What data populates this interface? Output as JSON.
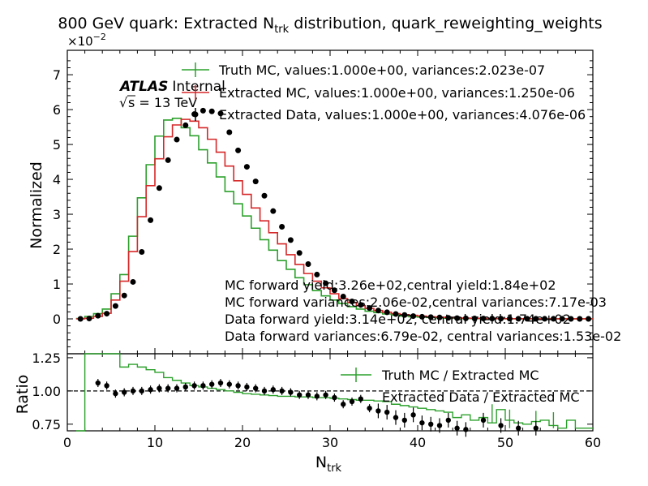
{
  "chart_data": {
    "type": "histogram-with-ratio",
    "title": "800 GeV quark: Extracted N",
    "title_sub": "trk",
    "title_tail": " distribution, quark_reweighting_weights",
    "experiment": "ATLAS",
    "experiment_status": "Internal",
    "energy_label": "s = 13 TeV",
    "y_exponent_base": "×10",
    "y_exponent_power": "−2",
    "xlabel": "N",
    "xlabel_sub": "trk",
    "ylabel_top": "Normalized",
    "ylabel_bottom": "Ratio",
    "x_range": [
      0,
      60
    ],
    "y_range_top": [
      -0.01,
      0.077
    ],
    "y_range_ratio": [
      0.7,
      1.28
    ],
    "x_ticks": [
      "0",
      "10",
      "20",
      "30",
      "40",
      "50",
      "60"
    ],
    "y_ticks_top": [
      "0",
      "1",
      "2",
      "3",
      "4",
      "5",
      "6",
      "7"
    ],
    "y_ticks_top_values": [
      0,
      0.01,
      0.02,
      0.03,
      0.04,
      0.05,
      0.06,
      0.07
    ],
    "y_ticks_ratio": [
      "0.75",
      "1.00",
      "1.25"
    ],
    "y_ticks_ratio_values": [
      0.75,
      1.0,
      1.25
    ],
    "legend_top": [
      "Truth MC, values:1.000e+00, variances:2.023e-07",
      "Extracted MC, values:1.000e+00, variances:1.250e-06",
      "Extracted Data, values:1.000e+00, variances:4.076e-06"
    ],
    "legend_ratio": [
      "Truth MC / Extracted MC",
      "Extracted Data / Extracted MC"
    ],
    "annotations": [
      "MC forward yield:3.26e+02,central yield:1.84e+02",
      "MC forward variances:2.06e-02,central variances:7.17e-03",
      "Data forward yield:3.14e+02, central yield:1.74e+02",
      "Data forward variances:6.79e-02, central variances:1.53e-02"
    ],
    "colors": {
      "truth_mc": "#2ca02c",
      "extracted_mc": "#d62728",
      "extracted_data": "#000000"
    },
    "bin_edges": [
      1,
      2,
      3,
      4,
      5,
      6,
      7,
      8,
      9,
      10,
      11,
      12,
      13,
      14,
      15,
      16,
      17,
      18,
      19,
      20,
      21,
      22,
      23,
      24,
      25,
      26,
      27,
      28,
      29,
      30,
      31,
      32,
      33,
      34,
      35,
      36,
      37,
      38,
      39,
      40,
      41,
      42,
      43,
      44,
      45,
      46,
      47,
      48,
      49,
      50,
      51,
      52,
      53,
      54,
      55,
      56,
      57,
      58,
      59,
      60
    ],
    "series": [
      {
        "name": "Truth MC",
        "values": [
          0.0001,
          0.0007,
          0.0015,
          0.0028,
          0.0072,
          0.0127,
          0.0237,
          0.0347,
          0.0442,
          0.0524,
          0.057,
          0.0575,
          0.0548,
          0.0525,
          0.0485,
          0.0447,
          0.0407,
          0.0365,
          0.033,
          0.0295,
          0.026,
          0.0227,
          0.0197,
          0.0167,
          0.0142,
          0.0118,
          0.0098,
          0.0081,
          0.0066,
          0.0054,
          0.0044,
          0.0035,
          0.0028,
          0.0022,
          0.0018,
          0.0014,
          0.0011,
          0.0008,
          0.0006,
          0.0005,
          0.0004,
          0.0003,
          0.0002,
          0.00015,
          0.0001,
          8e-05,
          6e-05,
          4e-05,
          3e-05,
          2e-05,
          2e-05,
          1e-05,
          1e-05,
          1e-05,
          1e-05,
          1e-05,
          1e-05,
          1e-05,
          1e-05
        ]
      },
      {
        "name": "Extracted MC",
        "values": [
          0.0,
          0.0002,
          0.0007,
          0.0016,
          0.0054,
          0.0108,
          0.0193,
          0.0293,
          0.0382,
          0.0459,
          0.0522,
          0.0556,
          0.0572,
          0.0567,
          0.0548,
          0.0515,
          0.0478,
          0.0438,
          0.0396,
          0.0357,
          0.0318,
          0.0281,
          0.0247,
          0.0215,
          0.0184,
          0.0156,
          0.013,
          0.0108,
          0.0089,
          0.0072,
          0.0058,
          0.0047,
          0.0038,
          0.003,
          0.0024,
          0.0019,
          0.0015,
          0.0012,
          0.001,
          0.0008,
          0.0006,
          0.0005,
          0.0004,
          0.0003,
          0.00022,
          0.00017,
          0.00013,
          0.0001,
          8e-05,
          6e-05,
          5e-05,
          4e-05,
          3e-05,
          2e-05,
          2e-05,
          1e-05,
          1e-05,
          1e-05,
          1e-05
        ]
      },
      {
        "name": "Extracted Data",
        "x": [
          1.5,
          2.5,
          3.5,
          4.5,
          5.5,
          6.5,
          7.5,
          8.5,
          9.5,
          10.5,
          11.5,
          12.5,
          13.5,
          14.5,
          15.5,
          16.5,
          17.5,
          18.5,
          19.5,
          20.5,
          21.5,
          22.5,
          23.5,
          24.5,
          25.5,
          26.5,
          27.5,
          28.5,
          29.5,
          30.5,
          31.5,
          32.5,
          33.5,
          34.5,
          35.5,
          36.5,
          37.5,
          38.5,
          39.5,
          40.5,
          41.5,
          42.5,
          43.5,
          44.5,
          45.5,
          46.5,
          47.5,
          48.5,
          49.5,
          50.5,
          51.5,
          52.5,
          53.5,
          54.5,
          55.5,
          56.5,
          57.5,
          58.5,
          59.5
        ],
        "values": [
          0.0,
          0.0001,
          0.0009,
          0.0015,
          0.0037,
          0.0067,
          0.0106,
          0.0192,
          0.0283,
          0.0375,
          0.0455,
          0.0514,
          0.0555,
          0.0587,
          0.0597,
          0.0595,
          0.0589,
          0.0535,
          0.0483,
          0.0436,
          0.0394,
          0.0353,
          0.0309,
          0.0264,
          0.0226,
          0.0189,
          0.0157,
          0.0127,
          0.0102,
          0.0082,
          0.0064,
          0.005,
          0.004,
          0.0031,
          0.0024,
          0.0019,
          0.0014,
          0.0011,
          0.0008,
          0.0006,
          0.0005,
          0.0004,
          0.0003,
          0.0002,
          0.00015,
          0.00012,
          0.0001,
          8e-05,
          6e-05,
          5e-05,
          4e-05,
          3e-05,
          3e-05,
          2e-05,
          2e-05,
          2e-05,
          1e-05,
          1e-05,
          1e-05
        ]
      }
    ],
    "ratio_series": [
      {
        "name": "Truth MC / Extracted MC",
        "values": [
          0.5,
          1.3,
          1.3,
          1.3,
          1.3,
          1.18,
          1.2,
          1.18,
          1.16,
          1.14,
          1.1,
          1.08,
          1.06,
          1.04,
          1.03,
          1.02,
          1.01,
          1.0,
          0.99,
          0.98,
          0.975,
          0.97,
          0.965,
          0.96,
          0.96,
          0.955,
          0.955,
          0.95,
          0.95,
          0.945,
          0.94,
          0.935,
          0.93,
          0.93,
          0.925,
          0.92,
          0.9,
          0.89,
          0.88,
          0.87,
          0.86,
          0.85,
          0.84,
          0.8,
          0.82,
          0.78,
          0.8,
          0.76,
          0.86,
          0.78,
          0.76,
          0.75,
          0.77,
          0.78,
          0.74,
          0.72,
          0.78,
          0.72,
          0.72
        ]
      },
      {
        "name": "Extracted Data / Extracted MC",
        "x": [
          3.5,
          4.5,
          5.5,
          6.5,
          7.5,
          8.5,
          9.5,
          10.5,
          11.5,
          12.5,
          13.5,
          14.5,
          15.5,
          16.5,
          17.5,
          18.5,
          19.5,
          20.5,
          21.5,
          22.5,
          23.5,
          24.5,
          25.5,
          26.5,
          27.5,
          28.5,
          29.5,
          30.5,
          31.5,
          32.5,
          33.5,
          34.5,
          35.5,
          36.5,
          37.5,
          38.5,
          39.5,
          40.5,
          41.5,
          42.5,
          43.5,
          44.5,
          45.5,
          47.5,
          49.5,
          51.5,
          53.5
        ],
        "values": [
          1.06,
          1.04,
          0.98,
          0.99,
          1.0,
          1.0,
          1.01,
          1.02,
          1.02,
          1.02,
          1.03,
          1.04,
          1.04,
          1.05,
          1.06,
          1.05,
          1.04,
          1.03,
          1.02,
          1.0,
          1.01,
          1.0,
          0.99,
          0.97,
          0.97,
          0.96,
          0.97,
          0.95,
          0.9,
          0.92,
          0.94,
          0.87,
          0.85,
          0.84,
          0.8,
          0.78,
          0.82,
          0.76,
          0.75,
          0.74,
          0.78,
          0.72,
          0.71,
          0.78,
          0.74,
          0.72,
          0.72
        ]
      }
    ],
    "ratio_reference_line": 1.0
  }
}
